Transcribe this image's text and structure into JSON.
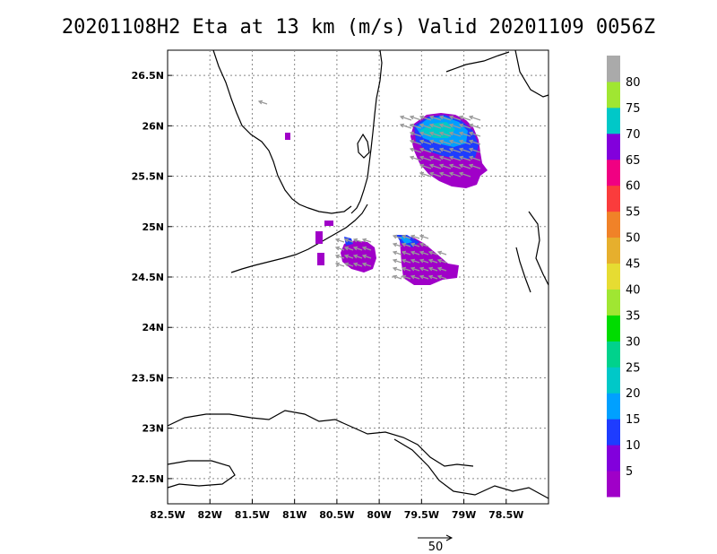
{
  "title": "20201108H2 Eta at 13 km (m/s) Valid 20201109 0056Z",
  "map": {
    "lon_range": [
      -82.5,
      -78.0
    ],
    "lat_range": [
      22.25,
      26.75
    ],
    "lon_ticks": [
      "82.5W",
      "82W",
      "81.5W",
      "81W",
      "80.5W",
      "80W",
      "79.5W",
      "79W",
      "78.5W"
    ],
    "lat_ticks": [
      "26.5N",
      "26N",
      "25.5N",
      "25N",
      "24.5N",
      "24N",
      "23.5N",
      "23N",
      "22.5N"
    ],
    "grid": true
  },
  "colorbar": {
    "labels": [
      "5",
      "10",
      "15",
      "20",
      "25",
      "30",
      "35",
      "40",
      "45",
      "50",
      "55",
      "60",
      "65",
      "70",
      "75",
      "80"
    ],
    "colors": [
      "#a000c8",
      "#8200dc",
      "#1e3cff",
      "#00a0ff",
      "#00c8c8",
      "#00d28c",
      "#00dc00",
      "#a0e632",
      "#e6dc32",
      "#e6af2d",
      "#f08228",
      "#fa3c3c",
      "#f00082",
      "#8200dc",
      "#00c8c8",
      "#a0e632",
      "#aaaaaa"
    ]
  },
  "vector_reference": {
    "label": "50",
    "units": "m/s"
  }
}
